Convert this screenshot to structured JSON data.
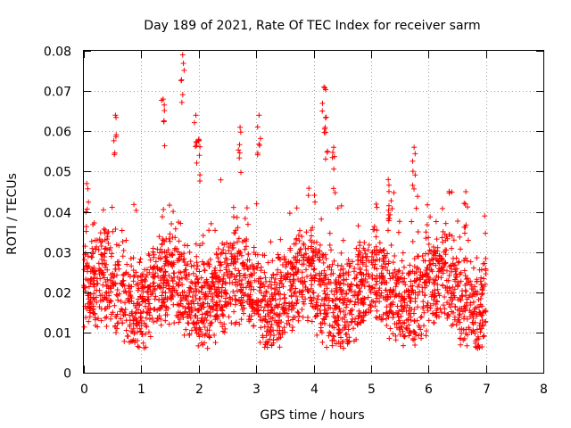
{
  "chart_data": {
    "type": "scatter",
    "title": "Day 189 of 2021, Rate Of TEC Index for receiver sarm",
    "xlabel": "GPS time / hours",
    "ylabel": "ROTI / TECUs",
    "xlim": [
      0,
      8
    ],
    "ylim": [
      0,
      0.08
    ],
    "xticks": [
      "0",
      "1",
      "2",
      "3",
      "4",
      "5",
      "6",
      "7",
      "8"
    ],
    "yticks": [
      "0",
      "0.01",
      "0.02",
      "0.03",
      "0.04",
      "0.05",
      "0.06",
      "0.07",
      "0.08"
    ],
    "grid": true,
    "marker": "+",
    "series": [
      {
        "name": "ROTI",
        "color": "#ff0000",
        "time_range_hours": [
          0,
          7.0
        ],
        "typical_range": [
          0.01,
          0.03
        ],
        "peaks": [
          {
            "x": 0.05,
            "y": 0.047
          },
          {
            "x": 0.55,
            "y": 0.064
          },
          {
            "x": 1.38,
            "y": 0.068
          },
          {
            "x": 1.72,
            "y": 0.079
          },
          {
            "x": 1.95,
            "y": 0.064
          },
          {
            "x": 2.0,
            "y": 0.058
          },
          {
            "x": 2.72,
            "y": 0.061
          },
          {
            "x": 3.05,
            "y": 0.064
          },
          {
            "x": 4.18,
            "y": 0.071
          },
          {
            "x": 4.22,
            "y": 0.0635
          },
          {
            "x": 4.35,
            "y": 0.056
          },
          {
            "x": 5.3,
            "y": 0.048
          },
          {
            "x": 5.75,
            "y": 0.056
          },
          {
            "x": 6.65,
            "y": 0.045
          }
        ]
      }
    ]
  }
}
